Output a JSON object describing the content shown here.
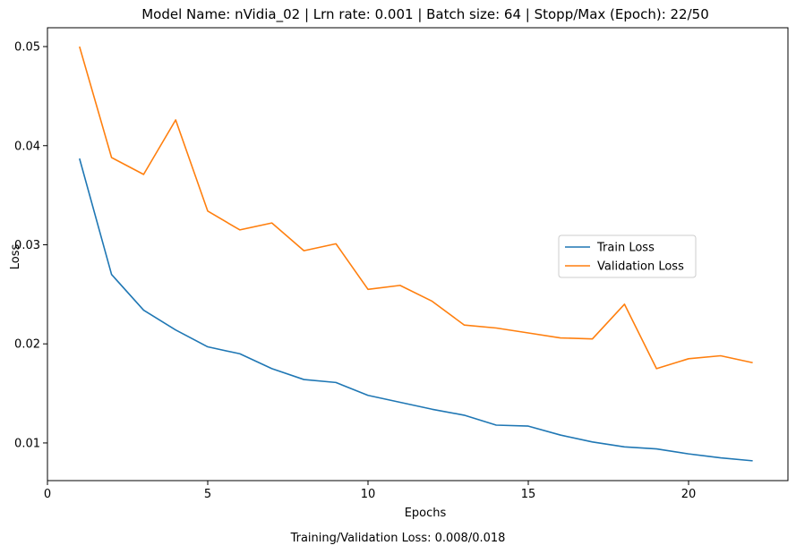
{
  "chart_data": {
    "type": "line",
    "title": "Model Name: nVidia_02 | Lrn rate: 0.001 | Batch size: 64 | Stopp/Max (Epoch): 22/50",
    "xlabel": "Epochs",
    "ylabel": "Loss",
    "xlim": [
      0,
      23.1
    ],
    "ylim": [
      0.0062,
      0.0519
    ],
    "xticks": [
      0,
      5,
      10,
      15,
      20
    ],
    "yticks": [
      0.01,
      0.02,
      0.03,
      0.04,
      0.05
    ],
    "xtick_labels": [
      "0",
      "5",
      "10",
      "15",
      "20"
    ],
    "ytick_labels": [
      "0.01",
      "0.02",
      "0.03",
      "0.04",
      "0.05"
    ],
    "grid": false,
    "legend_position": "center-right",
    "x": [
      1,
      2,
      3,
      4,
      5,
      6,
      7,
      8,
      9,
      10,
      11,
      12,
      13,
      14,
      15,
      16,
      17,
      18,
      19,
      20,
      21,
      22
    ],
    "series": [
      {
        "name": "Train Loss",
        "color": "#1f77b4",
        "values": [
          0.0387,
          0.027,
          0.0234,
          0.0214,
          0.0197,
          0.019,
          0.0175,
          0.0164,
          0.0161,
          0.0148,
          0.0141,
          0.0134,
          0.0128,
          0.0118,
          0.0117,
          0.0108,
          0.0101,
          0.0096,
          0.0094,
          0.0089,
          0.0085,
          0.0082
        ]
      },
      {
        "name": "Validation Loss",
        "color": "#ff7f0e",
        "values": [
          0.05,
          0.0388,
          0.0371,
          0.0426,
          0.0334,
          0.0315,
          0.0322,
          0.0294,
          0.0301,
          0.0255,
          0.0259,
          0.0243,
          0.0219,
          0.0216,
          0.0211,
          0.0206,
          0.0205,
          0.024,
          0.0175,
          0.0185,
          0.0188,
          0.0181
        ]
      }
    ]
  },
  "caption": "Training/Validation Loss: 0.008/0.018"
}
